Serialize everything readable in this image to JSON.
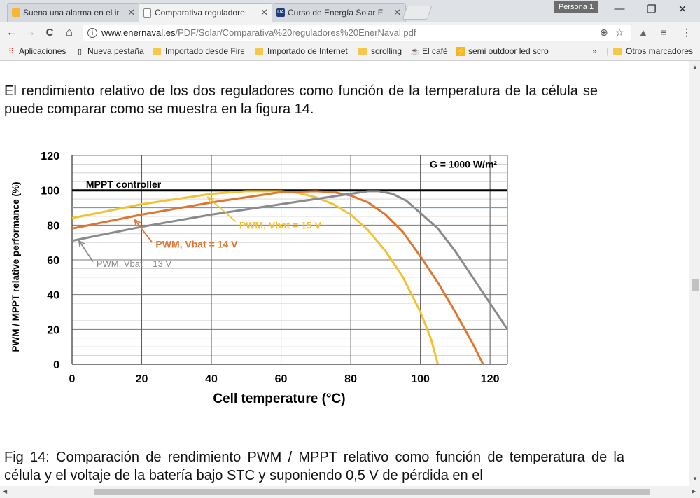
{
  "tabs": [
    {
      "label": "Suena una alarma en el ir",
      "close": "✕",
      "icon": "alarm-favicon"
    },
    {
      "label": "Comparativa reguladore:",
      "close": "✕",
      "icon": "document-favicon"
    },
    {
      "label": "Curso de Energía Solar F",
      "close": "✕",
      "icon": "ua-favicon",
      "icon_text": "UA"
    }
  ],
  "profile": "Persona 1",
  "window": {
    "minimize": "—",
    "restore": "❐",
    "close": "✕"
  },
  "nav": {
    "back": "←",
    "forward": "→",
    "reload": "C",
    "home": "⌂"
  },
  "address": {
    "host": "www.enernaval.es",
    "path": "/PDF/Solar/Comparativa%20reguladores%20EnerNaval.pdf"
  },
  "bookmarks": [
    {
      "label": "Aplicaciones",
      "icon": "apps-icon"
    },
    {
      "label": "Nueva pestaña",
      "icon": "page-icon"
    },
    {
      "label": "Importado desde Firef",
      "icon": "folder-icon"
    },
    {
      "label": "Importado de Internet",
      "icon": "folder-icon"
    },
    {
      "label": "scrolling",
      "icon": "folder-icon"
    },
    {
      "label": "El café",
      "icon": "coffee-icon"
    },
    {
      "label": "semi outdoor led scro",
      "icon": "bolt-icon"
    }
  ],
  "bookmarks_more": "»",
  "bookmarks_other": "Otros marcadores",
  "content": {
    "para1": "El rendimiento relativo de los dos reguladores como función de la temperatura de la célula se puede comparar como se muestra en la figura 14.",
    "caption": "Fig 14: Comparación de rendimiento PWM / MPPT relativo como  función de temperatura de la célula y el voltaje de la batería bajo STC y suponiendo 0,5 V de pérdida en el"
  },
  "chart_data": {
    "type": "line",
    "xlabel": "Cell temperature (°C)",
    "ylabel": "PWM / MPPT relative performance (%)",
    "xlim": [
      0,
      125
    ],
    "ylim": [
      0,
      120
    ],
    "xticks": [
      0,
      20,
      40,
      60,
      80,
      100,
      120
    ],
    "yticks": [
      0,
      20,
      40,
      60,
      80,
      100,
      120
    ],
    "annotation": "G = 1000 W/m²",
    "reference_line_value": 90,
    "colors": {
      "mppt": "#000000",
      "v15": "#f2c233",
      "v14": "#e0752f",
      "v13": "#8a8a8a",
      "ref": "#5aa5d4"
    },
    "series": [
      {
        "name": "MPPT controller",
        "key": "mppt",
        "label_at": [
          4,
          101.5
        ],
        "x": [
          0,
          125
        ],
        "y": [
          100,
          100
        ]
      },
      {
        "name": "PWM, Vbat = 15 V",
        "key": "v15",
        "label_at": [
          48,
          78
        ],
        "arrow_from": [
          47,
          82
        ],
        "arrow_to": [
          39,
          96
        ],
        "x": [
          0,
          10,
          20,
          30,
          40,
          50,
          60,
          65,
          70,
          75,
          80,
          85,
          90,
          95,
          100,
          103,
          105
        ],
        "y": [
          84,
          88,
          92,
          95,
          98,
          99.5,
          99.5,
          98.5,
          96,
          92,
          86,
          77,
          65,
          50,
          30,
          15,
          0
        ]
      },
      {
        "name": "PWM, Vbat = 14 V",
        "key": "v14",
        "label_at": [
          24,
          67
        ],
        "arrow_from": [
          23,
          70
        ],
        "arrow_to": [
          18,
          83
        ],
        "x": [
          0,
          20,
          40,
          60,
          70,
          75,
          80,
          85,
          90,
          95,
          100,
          105,
          110,
          115,
          118
        ],
        "y": [
          78,
          86,
          93,
          99,
          99.5,
          99,
          97,
          93,
          86,
          76,
          62,
          47,
          30,
          12,
          0
        ]
      },
      {
        "name": "PWM, Vbat = 13 V",
        "key": "v13",
        "label_at": [
          7,
          56
        ],
        "arrow_from": [
          6,
          59
        ],
        "arrow_to": [
          2,
          71
        ],
        "x": [
          0,
          20,
          40,
          60,
          80,
          85,
          88,
          92,
          96,
          100,
          105,
          110,
          115,
          120,
          125
        ],
        "y": [
          71,
          79,
          86,
          92,
          98,
          99.5,
          99.5,
          98,
          94,
          87,
          78,
          65,
          50,
          35,
          20
        ]
      }
    ]
  }
}
